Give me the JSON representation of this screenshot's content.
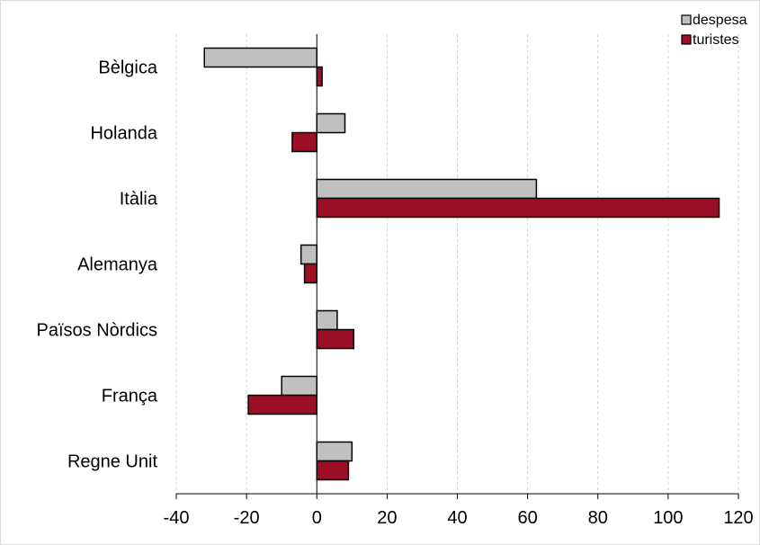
{
  "chart_data": {
    "type": "bar",
    "orientation": "horizontal",
    "categories": [
      "Bèlgica",
      "Holanda",
      "Itàlia",
      "Alemanya",
      "Països Nòrdics",
      "França",
      "Regne Unit"
    ],
    "series": [
      {
        "name": "despesa",
        "color": "#c0c0c0",
        "values": [
          -32,
          8,
          62.5,
          -4.5,
          5.8,
          -10,
          10
        ]
      },
      {
        "name": "turistes",
        "color": "#9b1027",
        "values": [
          1.5,
          -7,
          114.5,
          -3.5,
          10.5,
          -19.5,
          9
        ]
      }
    ],
    "xlim": [
      -40,
      120
    ],
    "xticks": [
      "-40",
      "-20",
      "0",
      "20",
      "40",
      "60",
      "80",
      "100",
      "120"
    ],
    "grid": "vertical-dashed",
    "legend_position": "top-right"
  }
}
